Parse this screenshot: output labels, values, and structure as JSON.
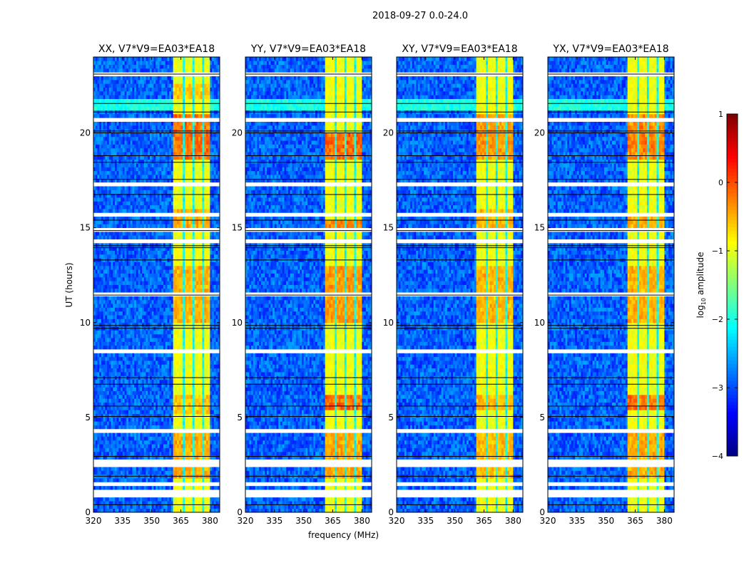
{
  "chart_data": {
    "type": "heatmap",
    "suptitle": "2018-09-27 0.0-24.0",
    "xlabel": "frequency (MHz)",
    "ylabel": "UT (hours)",
    "xlim": [
      320,
      385
    ],
    "ylim": [
      0,
      24
    ],
    "xticks": [
      "320",
      "335",
      "350",
      "365",
      "380"
    ],
    "xtick_values": [
      320,
      335,
      350,
      365,
      380
    ],
    "yticks": [
      "0",
      "5",
      "10",
      "15",
      "20"
    ],
    "ytick_values": [
      0,
      5,
      10,
      15,
      20
    ],
    "colorbar": {
      "label": "log",
      "label_sub": "10",
      "label_rest": " amplitude",
      "range": [
        -4,
        1
      ],
      "ticks": [
        "1",
        "0",
        "−1",
        "−2",
        "−3",
        "−4"
      ],
      "tick_values": [
        1,
        0,
        -1,
        -2,
        -3,
        -4
      ],
      "colormap": "jet"
    },
    "model": {
      "background_level": -2.9,
      "noise": 0.35,
      "band": {
        "from": 361.5,
        "to": 380.5,
        "level": -0.95
      },
      "band_gaps_mhz": [
        366.5,
        371.5,
        376.5
      ],
      "gap_level": -2.1,
      "weak_lines_mhz": [
        335,
        352,
        359
      ],
      "weak_line_level": -2.1,
      "bright_row_hours": [
        21.25,
        21.75
      ],
      "bright_row_level": -2.0,
      "flagged_hours": [
        [
          0.9,
          1.2
        ],
        [
          1.45,
          1.6
        ],
        [
          1.8,
          1.9
        ],
        [
          2.5,
          2.75
        ],
        [
          4.25,
          4.4
        ],
        [
          5.15,
          5.22
        ],
        [
          5.4,
          5.5
        ],
        [
          6.35,
          6.45
        ],
        [
          6.6,
          6.7
        ],
        [
          7.55,
          7.65
        ],
        [
          8.15,
          8.22
        ],
        [
          8.5,
          8.58
        ],
        [
          9.7,
          9.8
        ],
        [
          11.4,
          11.5
        ],
        [
          13.5,
          13.6
        ],
        [
          14.2,
          14.3
        ],
        [
          14.85,
          14.9
        ],
        [
          15.6,
          15.7
        ],
        [
          17.0,
          17.08
        ],
        [
          17.25,
          17.35
        ],
        [
          18.7,
          18.78
        ],
        [
          20.6,
          20.75
        ],
        [
          22.1,
          22.2
        ],
        [
          22.5,
          22.6
        ],
        [
          23.05,
          23.15
        ]
      ],
      "black_line_hours": [
        0.4,
        1.9,
        2.95,
        5.05,
        5.6,
        6.75,
        7.1,
        9.7,
        9.85,
        11.45,
        13.3,
        13.95,
        14.05,
        14.85,
        15.4,
        16.75,
        17.55,
        18.45,
        18.8,
        20.0,
        20.1,
        21.1,
        21.55,
        23.1
      ]
    },
    "panels": [
      {
        "title": "XX, V7*V9=EA03*EA18",
        "band_boosts": [
          {
            "hours": [
              18.6,
              20.9
            ],
            "add": 0.95
          },
          {
            "hours": [
              14.8,
              16.0
            ],
            "add": 0.6
          },
          {
            "hours": [
              9.9,
              13.0
            ],
            "add": 0.55
          },
          {
            "hours": [
              5.3,
              6.3
            ],
            "add": 0.4
          },
          {
            "hours": [
              1.9,
              4.2
            ],
            "add": 0.6
          },
          {
            "hours": [
              21.8,
              22.5
            ],
            "add": 0.4
          }
        ]
      },
      {
        "title": "YY, V7*V9=EA03*EA18",
        "band_boosts": [
          {
            "hours": [
              18.6,
              20.0
            ],
            "add": 1.0
          },
          {
            "hours": [
              14.8,
              15.3
            ],
            "add": 0.8
          },
          {
            "hours": [
              10.0,
              13.0
            ],
            "add": 0.7
          },
          {
            "hours": [
              5.5,
              6.2
            ],
            "add": 1.0
          },
          {
            "hours": [
              1.9,
              4.2
            ],
            "add": 0.6
          }
        ]
      },
      {
        "title": "XY, V7*V9=EA03*EA18",
        "band_boosts": [
          {
            "hours": [
              18.6,
              20.9
            ],
            "add": 0.7
          },
          {
            "hours": [
              14.8,
              16.0
            ],
            "add": 0.5
          },
          {
            "hours": [
              10.0,
              13.0
            ],
            "add": 0.55
          },
          {
            "hours": [
              5.5,
              6.2
            ],
            "add": 0.5
          },
          {
            "hours": [
              1.9,
              4.2
            ],
            "add": 0.5
          }
        ]
      },
      {
        "title": "YX, V7*V9=EA03*EA18",
        "band_boosts": [
          {
            "hours": [
              18.6,
              20.9
            ],
            "add": 0.8
          },
          {
            "hours": [
              14.8,
              15.6
            ],
            "add": 0.6
          },
          {
            "hours": [
              10.0,
              13.0
            ],
            "add": 0.55
          },
          {
            "hours": [
              5.5,
              6.2
            ],
            "add": 0.9
          },
          {
            "hours": [
              1.9,
              4.2
            ],
            "add": 0.6
          }
        ]
      }
    ]
  }
}
